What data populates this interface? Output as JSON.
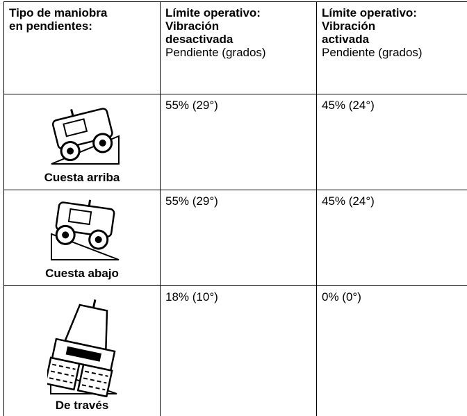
{
  "header": {
    "col1": [
      "Tipo de maniobra",
      "en pendientes:"
    ],
    "col2": {
      "title": [
        "Límite operativo:",
        "Vibración",
        "desactivada"
      ],
      "subtitle": "Pendiente (grados)"
    },
    "col3": {
      "title": [
        "Límite operativo:",
        "Vibración",
        "activada"
      ],
      "subtitle": "Pendiente (grados)"
    }
  },
  "rows": [
    {
      "label": "Cuesta arriba",
      "off": "55%  (29°)",
      "on": "45%  (24°)"
    },
    {
      "label": "Cuesta abajo",
      "off": "55%  (29°)",
      "on": "45%  (24°)"
    },
    {
      "label": "De través",
      "off": "18%  (10°)",
      "on": "0%  (0°)"
    }
  ]
}
